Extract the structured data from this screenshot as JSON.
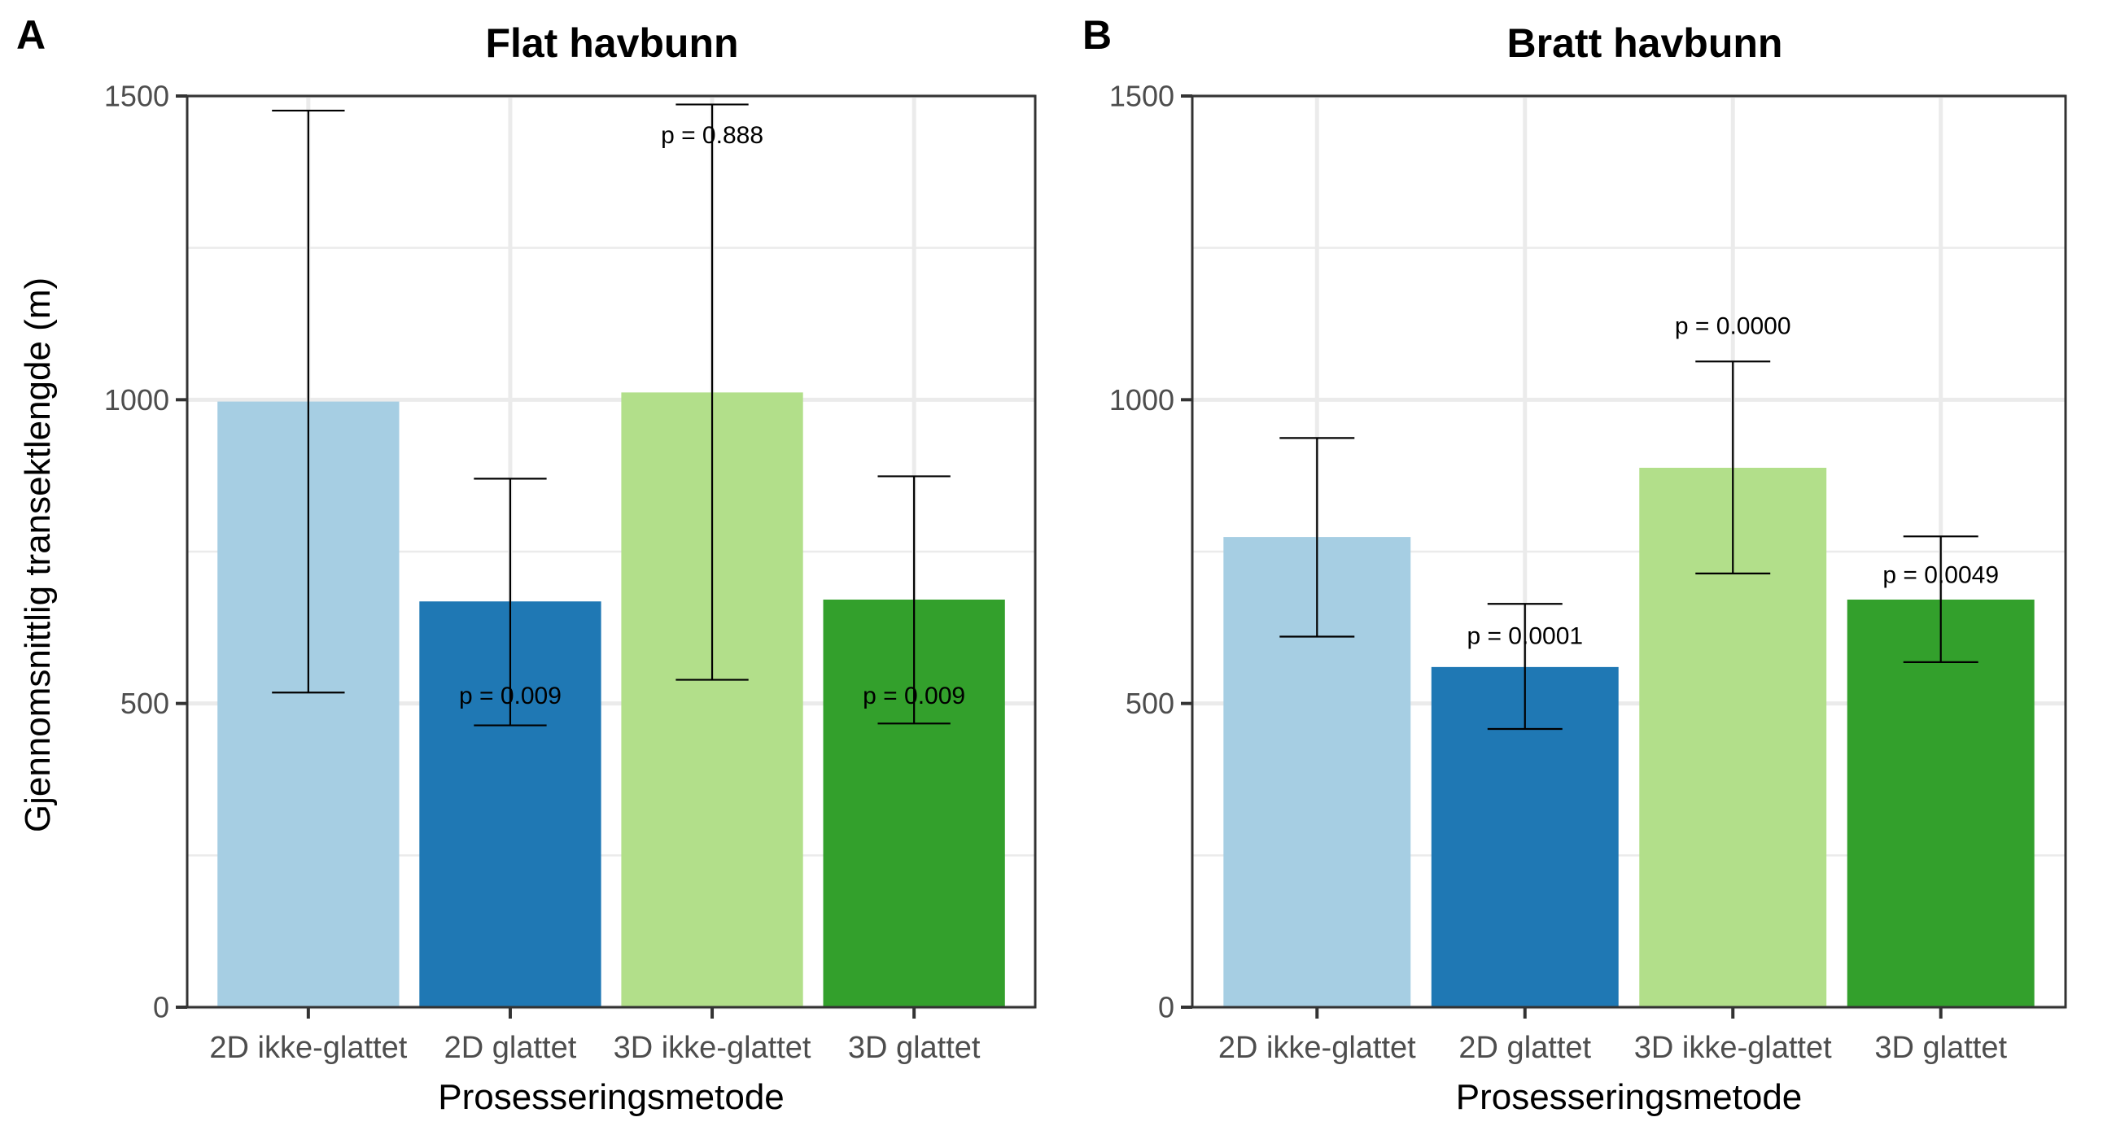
{
  "figure": {
    "ylabel": "Gjennomsnittlig transektlengde (m)",
    "xlabel": "Prosesseringsmetode"
  },
  "chart_data": [
    {
      "type": "bar",
      "panel_label": "A",
      "title": "Flat havbunn",
      "xlabel": "Prosesseringsmetode",
      "ylabel": "Gjennomsnittlig transektlengde (m)",
      "ylim": [
        0,
        1500
      ],
      "yticks": [
        "0",
        "500",
        "1000",
        "1500"
      ],
      "categories": [
        "2D ikke-glattet",
        "2D glattet",
        "3D ikke-glattet",
        "3D glattet"
      ],
      "values": [
        997,
        668,
        1012,
        671
      ],
      "error_low": [
        518,
        464,
        539,
        467
      ],
      "error_high": [
        1476,
        870,
        1486,
        874
      ],
      "colors": [
        "#A6CEE3",
        "#1F78B4",
        "#B2DF8A",
        "#33A02C"
      ],
      "annotations": [
        {
          "category": "2D glattet",
          "text": "p = 0.009",
          "y": 512
        },
        {
          "category": "3D ikke-glattet",
          "text": "p = 0.888",
          "y": 1435
        },
        {
          "category": "3D glattet",
          "text": "p = 0.009",
          "y": 512
        }
      ]
    },
    {
      "type": "bar",
      "panel_label": "B",
      "title": "Bratt havbunn",
      "xlabel": "Prosesseringsmetode",
      "ylabel": "",
      "ylim": [
        0,
        1500
      ],
      "yticks": [
        "0",
        "500",
        "1000",
        "1500"
      ],
      "categories": [
        "2D ikke-glattet",
        "2D glattet",
        "3D ikke-glattet",
        "3D glattet"
      ],
      "values": [
        774,
        560,
        888,
        671
      ],
      "error_low": [
        610,
        458,
        714,
        568
      ],
      "error_high": [
        937,
        664,
        1063,
        775
      ],
      "colors": [
        "#A6CEE3",
        "#1F78B4",
        "#B2DF8A",
        "#33A02C"
      ],
      "annotations": [
        {
          "category": "2D glattet",
          "text": "p = 0.0001",
          "y": 611
        },
        {
          "category": "3D ikke-glattet",
          "text": "p = 0.0000",
          "y": 1121
        },
        {
          "category": "3D glattet",
          "text": "p = 0.0049",
          "y": 711
        }
      ]
    }
  ]
}
